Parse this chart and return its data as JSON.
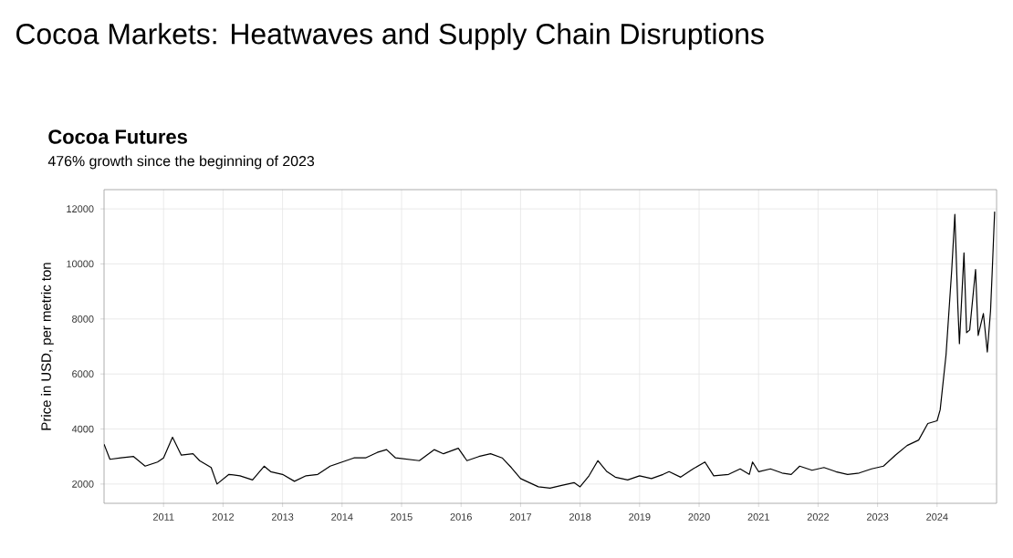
{
  "chart_data": {
    "type": "line",
    "title": "Cocoa Markets: Heatwaves and Supply Chain Disruptions",
    "subtitle": "Cocoa Futures",
    "annotations": [
      "476% growth since the beginning of 2023"
    ],
    "ylabel": "Price in USD, per metric ton",
    "xlim": [
      "2010-01-01",
      "2025-01-01"
    ],
    "ylim": [
      1300,
      12700
    ],
    "xticks": [
      "2011",
      "2012",
      "2013",
      "2014",
      "2015",
      "2016",
      "2017",
      "2018",
      "2019",
      "2020",
      "2021",
      "2022",
      "2023",
      "2024"
    ],
    "yticks": [
      2000,
      4000,
      6000,
      8000,
      10000,
      12000
    ],
    "grid": true,
    "series": [
      {
        "color": "#000000",
        "x": [
          "2010-01-01",
          "2010-02-06",
          "2010-04-15",
          "2010-07-01",
          "2010-09-10",
          "2010-11-25",
          "2011-01-01",
          "2011-02-25",
          "2011-04-20",
          "2011-07-01",
          "2011-08-10",
          "2011-10-20",
          "2011-11-25",
          "2012-02-06",
          "2012-04-15",
          "2012-07-01",
          "2012-09-10",
          "2012-10-20",
          "2013-01-01",
          "2013-03-15",
          "2013-05-25",
          "2013-08-05",
          "2013-10-20",
          "2014-01-01",
          "2014-03-15",
          "2014-05-25",
          "2014-08-05",
          "2014-10-01",
          "2014-11-25",
          "2015-02-06",
          "2015-04-20",
          "2015-07-20",
          "2015-09-15",
          "2015-12-15",
          "2016-02-06",
          "2016-04-20",
          "2016-07-01",
          "2016-09-10",
          "2016-11-05",
          "2017-01-01",
          "2017-02-06",
          "2017-04-20",
          "2017-07-01",
          "2017-09-10",
          "2017-11-25",
          "2018-01-01",
          "2018-02-25",
          "2018-04-20",
          "2018-06-15",
          "2018-08-05",
          "2018-10-20",
          "2019-01-01",
          "2019-03-15",
          "2019-05-25",
          "2019-07-01",
          "2019-09-10",
          "2019-11-25",
          "2020-02-06",
          "2020-04-01",
          "2020-07-01",
          "2020-09-10",
          "2020-11-05",
          "2020-11-25",
          "2021-01-01",
          "2021-03-15",
          "2021-05-25",
          "2021-07-20",
          "2021-09-10",
          "2021-11-25",
          "2022-02-06",
          "2022-04-20",
          "2022-07-01",
          "2022-09-10",
          "2022-11-25",
          "2023-02-06",
          "2023-04-20",
          "2023-07-01",
          "2023-09-10",
          "2023-11-05",
          "2024-01-01",
          "2024-01-20",
          "2024-02-25",
          "2024-04-01",
          "2024-04-20",
          "2024-05-08",
          "2024-05-18",
          "2024-06-15",
          "2024-07-01",
          "2024-07-20",
          "2024-08-25",
          "2024-09-10",
          "2024-10-12",
          "2024-11-05",
          "2024-11-25",
          "2024-12-05",
          "2024-12-20"
        ],
        "values": [
          3450,
          2900,
          2950,
          3000,
          2650,
          2800,
          2950,
          3700,
          3050,
          3100,
          2850,
          2600,
          2000,
          2350,
          2300,
          2150,
          2650,
          2450,
          2350,
          2100,
          2300,
          2350,
          2650,
          2800,
          2950,
          2950,
          3150,
          3250,
          2950,
          2900,
          2850,
          3250,
          3100,
          3300,
          2850,
          3000,
          3100,
          2950,
          2600,
          2200,
          2100,
          1900,
          1850,
          1950,
          2050,
          1900,
          2300,
          2850,
          2450,
          2250,
          2150,
          2300,
          2200,
          2350,
          2450,
          2250,
          2550,
          2800,
          2300,
          2350,
          2550,
          2350,
          2800,
          2450,
          2550,
          2400,
          2350,
          2650,
          2500,
          2600,
          2450,
          2350,
          2400,
          2550,
          2650,
          3050,
          3400,
          3600,
          4200,
          4300,
          4700,
          6700,
          9800,
          11800,
          8500,
          7100,
          10400,
          7500,
          7600,
          9800,
          7400,
          8200,
          6800,
          8300,
          9700,
          11900
        ]
      }
    ]
  }
}
